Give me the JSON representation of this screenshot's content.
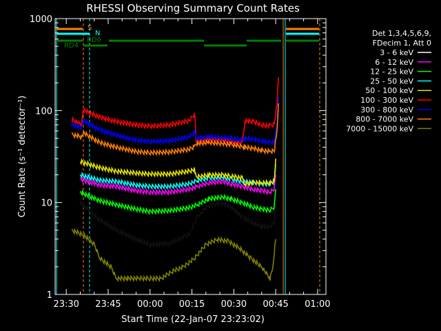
{
  "chart_data": {
    "type": "line",
    "title": "RHESSI Observing Summary Count Rates",
    "xlabel": "Start Time (22-Jan-07 23:23:02)",
    "ylabel": "Count Rate (s⁻¹ detector⁻¹)",
    "yscale": "log",
    "ylim": [
      1,
      1000
    ],
    "y_ticks": [
      1,
      10,
      100,
      1000
    ],
    "y_tick_labels": [
      "1",
      "10",
      "100",
      "1000"
    ],
    "xlim_minutes": [
      -34,
      63
    ],
    "x_ticks_minutes": [
      -30,
      -15,
      0,
      15,
      30,
      45,
      60
    ],
    "x_tick_labels": [
      "23:30",
      "23:45",
      "00:00",
      "00:15",
      "00:30",
      "00:45",
      "01:00"
    ],
    "legend": {
      "position": "top-right",
      "header": [
        "Det 1,3,4,5,6,9,",
        "FDecim 1, Att 0"
      ],
      "entries": [
        {
          "label": "3 - 6 keV",
          "color": "#000000"
        },
        {
          "label": "6 - 12 keV",
          "color": "#ff00ff"
        },
        {
          "label": "12 - 25 keV",
          "color": "#00ff00"
        },
        {
          "label": "25 - 50 keV",
          "color": "#00ffff"
        },
        {
          "label": "50 - 100 keV",
          "color": "#e5e500"
        },
        {
          "label": "100 - 300 keV",
          "color": "#ff0000"
        },
        {
          "label": "300 - 800 keV",
          "color": "#0000ff"
        },
        {
          "label": "800 - 7000 keV",
          "color": "#ff8000"
        },
        {
          "label": "7000 - 15000 keV",
          "color": "#808000"
        }
      ]
    },
    "flags": [
      {
        "label": "S",
        "color": "#ff8000"
      },
      {
        "label": "N",
        "color": "#00ffff"
      },
      {
        "label": "RD0",
        "color": "#008000"
      },
      {
        "label": "RD4",
        "color": "#008000"
      }
    ],
    "series": [
      {
        "name": "3 - 6 keV",
        "color": "#000000",
        "x": [
          -25,
          -18,
          -12,
          -5,
          0,
          7,
          14,
          17,
          21,
          26,
          29,
          33,
          37,
          40,
          43,
          44.5,
          45
        ],
        "y": [
          10,
          6.5,
          5,
          4,
          3.5,
          3.6,
          4.5,
          7,
          9.5,
          10,
          9,
          7,
          6,
          5.5,
          5.5,
          6,
          9
        ]
      },
      {
        "name": "6 - 12 keV",
        "color": "#ff00ff",
        "x": [
          -25,
          -18,
          -12,
          -5,
          0,
          7,
          14,
          17,
          21,
          26,
          29,
          33,
          37,
          40,
          43,
          44.5,
          45
        ],
        "y": [
          18,
          15.5,
          15,
          13.5,
          13,
          13,
          14,
          15,
          16.5,
          17,
          16,
          15,
          14,
          13.5,
          13,
          14,
          20
        ]
      },
      {
        "name": "12 - 25 keV",
        "color": "#00ff00",
        "x": [
          -25,
          -18,
          -12,
          -5,
          0,
          7,
          14,
          17,
          21,
          26,
          29,
          33,
          37,
          40,
          43,
          44.5,
          45
        ],
        "y": [
          13,
          10.5,
          9.5,
          8.5,
          8,
          8.2,
          8.8,
          9.5,
          11,
          11.5,
          11,
          10,
          9,
          8.5,
          8.3,
          9,
          14
        ]
      },
      {
        "name": "25 - 50 keV",
        "color": "#00ffff",
        "x": [
          -25,
          -18,
          -12,
          -5,
          0,
          7,
          14,
          17,
          21,
          26,
          29,
          33,
          37,
          40,
          43,
          44.5,
          45
        ],
        "y": [
          20,
          17.5,
          17,
          15.5,
          15,
          15,
          16,
          17.5,
          18.5,
          19,
          18,
          17,
          16.5,
          16,
          16,
          17,
          26
        ]
      },
      {
        "name": "50 - 100 keV",
        "color": "#e5e500",
        "x": [
          -25,
          -18,
          -12,
          -5,
          0,
          7,
          14,
          16,
          16.5,
          21,
          26,
          29,
          33,
          34,
          37,
          40,
          43,
          44.5,
          45
        ],
        "y": [
          28,
          24,
          22,
          21,
          20.5,
          20.5,
          22,
          23,
          19,
          20,
          20,
          19.5,
          18.5,
          16,
          16.5,
          16.5,
          16.5,
          17,
          30
        ]
      },
      {
        "name": "100 - 300 keV",
        "color": "#ff0000",
        "x": [
          -28,
          -24.5,
          -24,
          -18,
          -12,
          -5,
          0,
          7,
          14,
          16,
          16.5,
          21,
          26,
          29,
          33,
          34,
          37,
          40,
          43,
          44.5,
          45.5,
          46
        ],
        "y": [
          80,
          70,
          102,
          85,
          76,
          70,
          68,
          70,
          78,
          92,
          45,
          48,
          47,
          45,
          44,
          78,
          76,
          70,
          68,
          72,
          120,
          230
        ]
      },
      {
        "name": "300 - 800 keV",
        "color": "#0000ff",
        "x": [
          -28,
          -24.5,
          -24,
          -18,
          -12,
          -5,
          0,
          7,
          14,
          16,
          16.5,
          21,
          26,
          29,
          33,
          34,
          37,
          40,
          43,
          44.5,
          45.5,
          46
        ],
        "y": [
          70,
          66,
          78,
          62,
          54,
          48,
          46,
          47,
          52,
          58,
          50,
          52,
          51,
          50,
          48,
          50,
          49,
          47,
          45,
          46,
          70,
          140
        ]
      },
      {
        "name": "800 - 7000 keV",
        "color": "#ff8000",
        "x": [
          -28,
          -24.5,
          -24,
          -18,
          -12,
          -5,
          0,
          7,
          14,
          16,
          16.5,
          21,
          26,
          29,
          33,
          34,
          37,
          40,
          43,
          44.5,
          45.5,
          46
        ],
        "y": [
          55,
          52,
          58,
          45,
          40,
          36,
          35,
          35.5,
          38,
          41,
          44,
          45,
          44,
          43,
          41,
          40,
          39,
          37,
          36,
          37,
          60,
          120
        ]
      },
      {
        "name": "7000 - 15000 keV",
        "color": "#808000",
        "x": [
          -28,
          -24,
          -20,
          -18,
          -14,
          -12,
          -8,
          -4,
          0,
          4,
          8,
          12,
          16,
          20,
          24,
          28,
          32,
          36,
          40,
          43,
          44,
          45
        ],
        "y": [
          5,
          4.5,
          3.5,
          2.5,
          2,
          1.5,
          1.5,
          1.5,
          1.5,
          1.5,
          1.8,
          2,
          2.5,
          3.5,
          4,
          3.8,
          3.2,
          2.5,
          2,
          1.5,
          2,
          4
        ]
      }
    ]
  }
}
